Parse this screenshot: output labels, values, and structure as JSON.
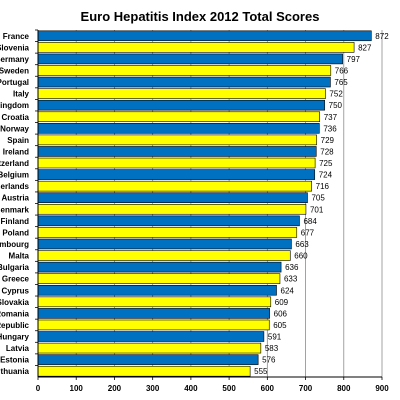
{
  "chart_data": {
    "type": "bar",
    "orientation": "horizontal",
    "title": "Euro Hepatitis Index 2012 Total Scores",
    "xlabel": "",
    "ylabel": "",
    "xlim": [
      0,
      900
    ],
    "ticks": [
      0,
      100,
      200,
      300,
      400,
      500,
      600,
      700,
      800,
      900
    ],
    "grid": "vertical",
    "legend": "none",
    "colors": {
      "blue": "#0070C0",
      "yellow": "#FFFF00",
      "border": "#000000",
      "grid": "#8c8c8c"
    },
    "categories": [
      "France",
      "Slovenia",
      "Germany",
      "Sweden",
      "Portugal",
      "Italy",
      "Kingdom",
      "Croatia",
      "Norway",
      "Spain",
      "Ireland",
      "tzerland",
      "Belgium",
      "herlands",
      "Austria",
      "enmark",
      "Finland",
      "Poland",
      "mbourg",
      "Malta",
      "Bulgaria",
      "Greece",
      "Cyprus",
      "Slovakia",
      "Romania",
      "Republic",
      "Hungary",
      "Latvia",
      "Estonia",
      "thuania"
    ],
    "values": [
      872,
      827,
      797,
      766,
      765,
      752,
      750,
      737,
      736,
      729,
      728,
      725,
      724,
      716,
      705,
      701,
      684,
      677,
      663,
      660,
      636,
      633,
      624,
      609,
      606,
      605,
      591,
      583,
      576,
      555
    ]
  }
}
